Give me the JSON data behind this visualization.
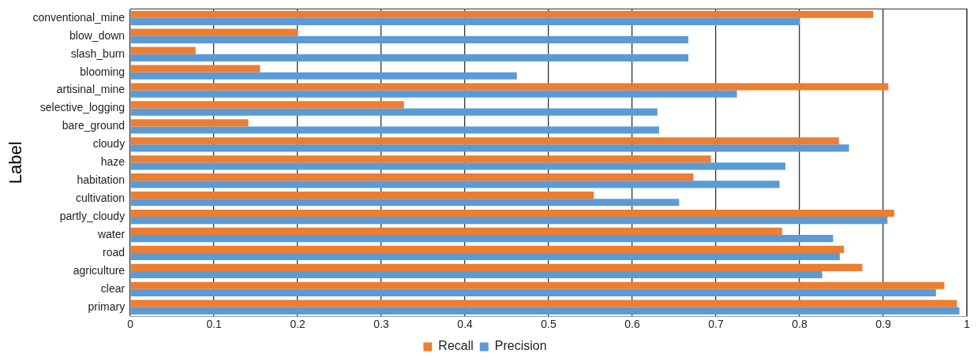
{
  "chart_data": {
    "type": "bar",
    "orientation": "horizontal",
    "ylabel": "Label",
    "categories": [
      "conventional_mine",
      "blow_down",
      "slash_burn",
      "blooming",
      "artisinal_mine",
      "selective_logging",
      "bare_ground",
      "cloudy",
      "haze",
      "habitation",
      "cultivation",
      "partly_cloudy",
      "water",
      "road",
      "agriculture",
      "clear",
      "primary"
    ],
    "series": [
      {
        "name": "Recall",
        "color": "#ed7d31",
        "values": [
          0.888,
          0.2,
          0.078,
          0.155,
          0.906,
          0.327,
          0.141,
          0.847,
          0.694,
          0.673,
          0.554,
          0.913,
          0.779,
          0.853,
          0.875,
          0.973,
          0.988
        ]
      },
      {
        "name": "Precision",
        "color": "#5b9bd5",
        "values": [
          0.8,
          0.667,
          0.667,
          0.462,
          0.725,
          0.63,
          0.632,
          0.859,
          0.783,
          0.776,
          0.656,
          0.905,
          0.84,
          0.848,
          0.827,
          0.963,
          0.991
        ]
      }
    ],
    "xlim": [
      0,
      1
    ],
    "xticks": [
      0,
      0.1,
      0.2,
      0.3,
      0.4,
      0.5,
      0.6,
      0.7,
      0.8,
      0.9,
      1
    ],
    "grid": "x",
    "legend": "bottom"
  }
}
